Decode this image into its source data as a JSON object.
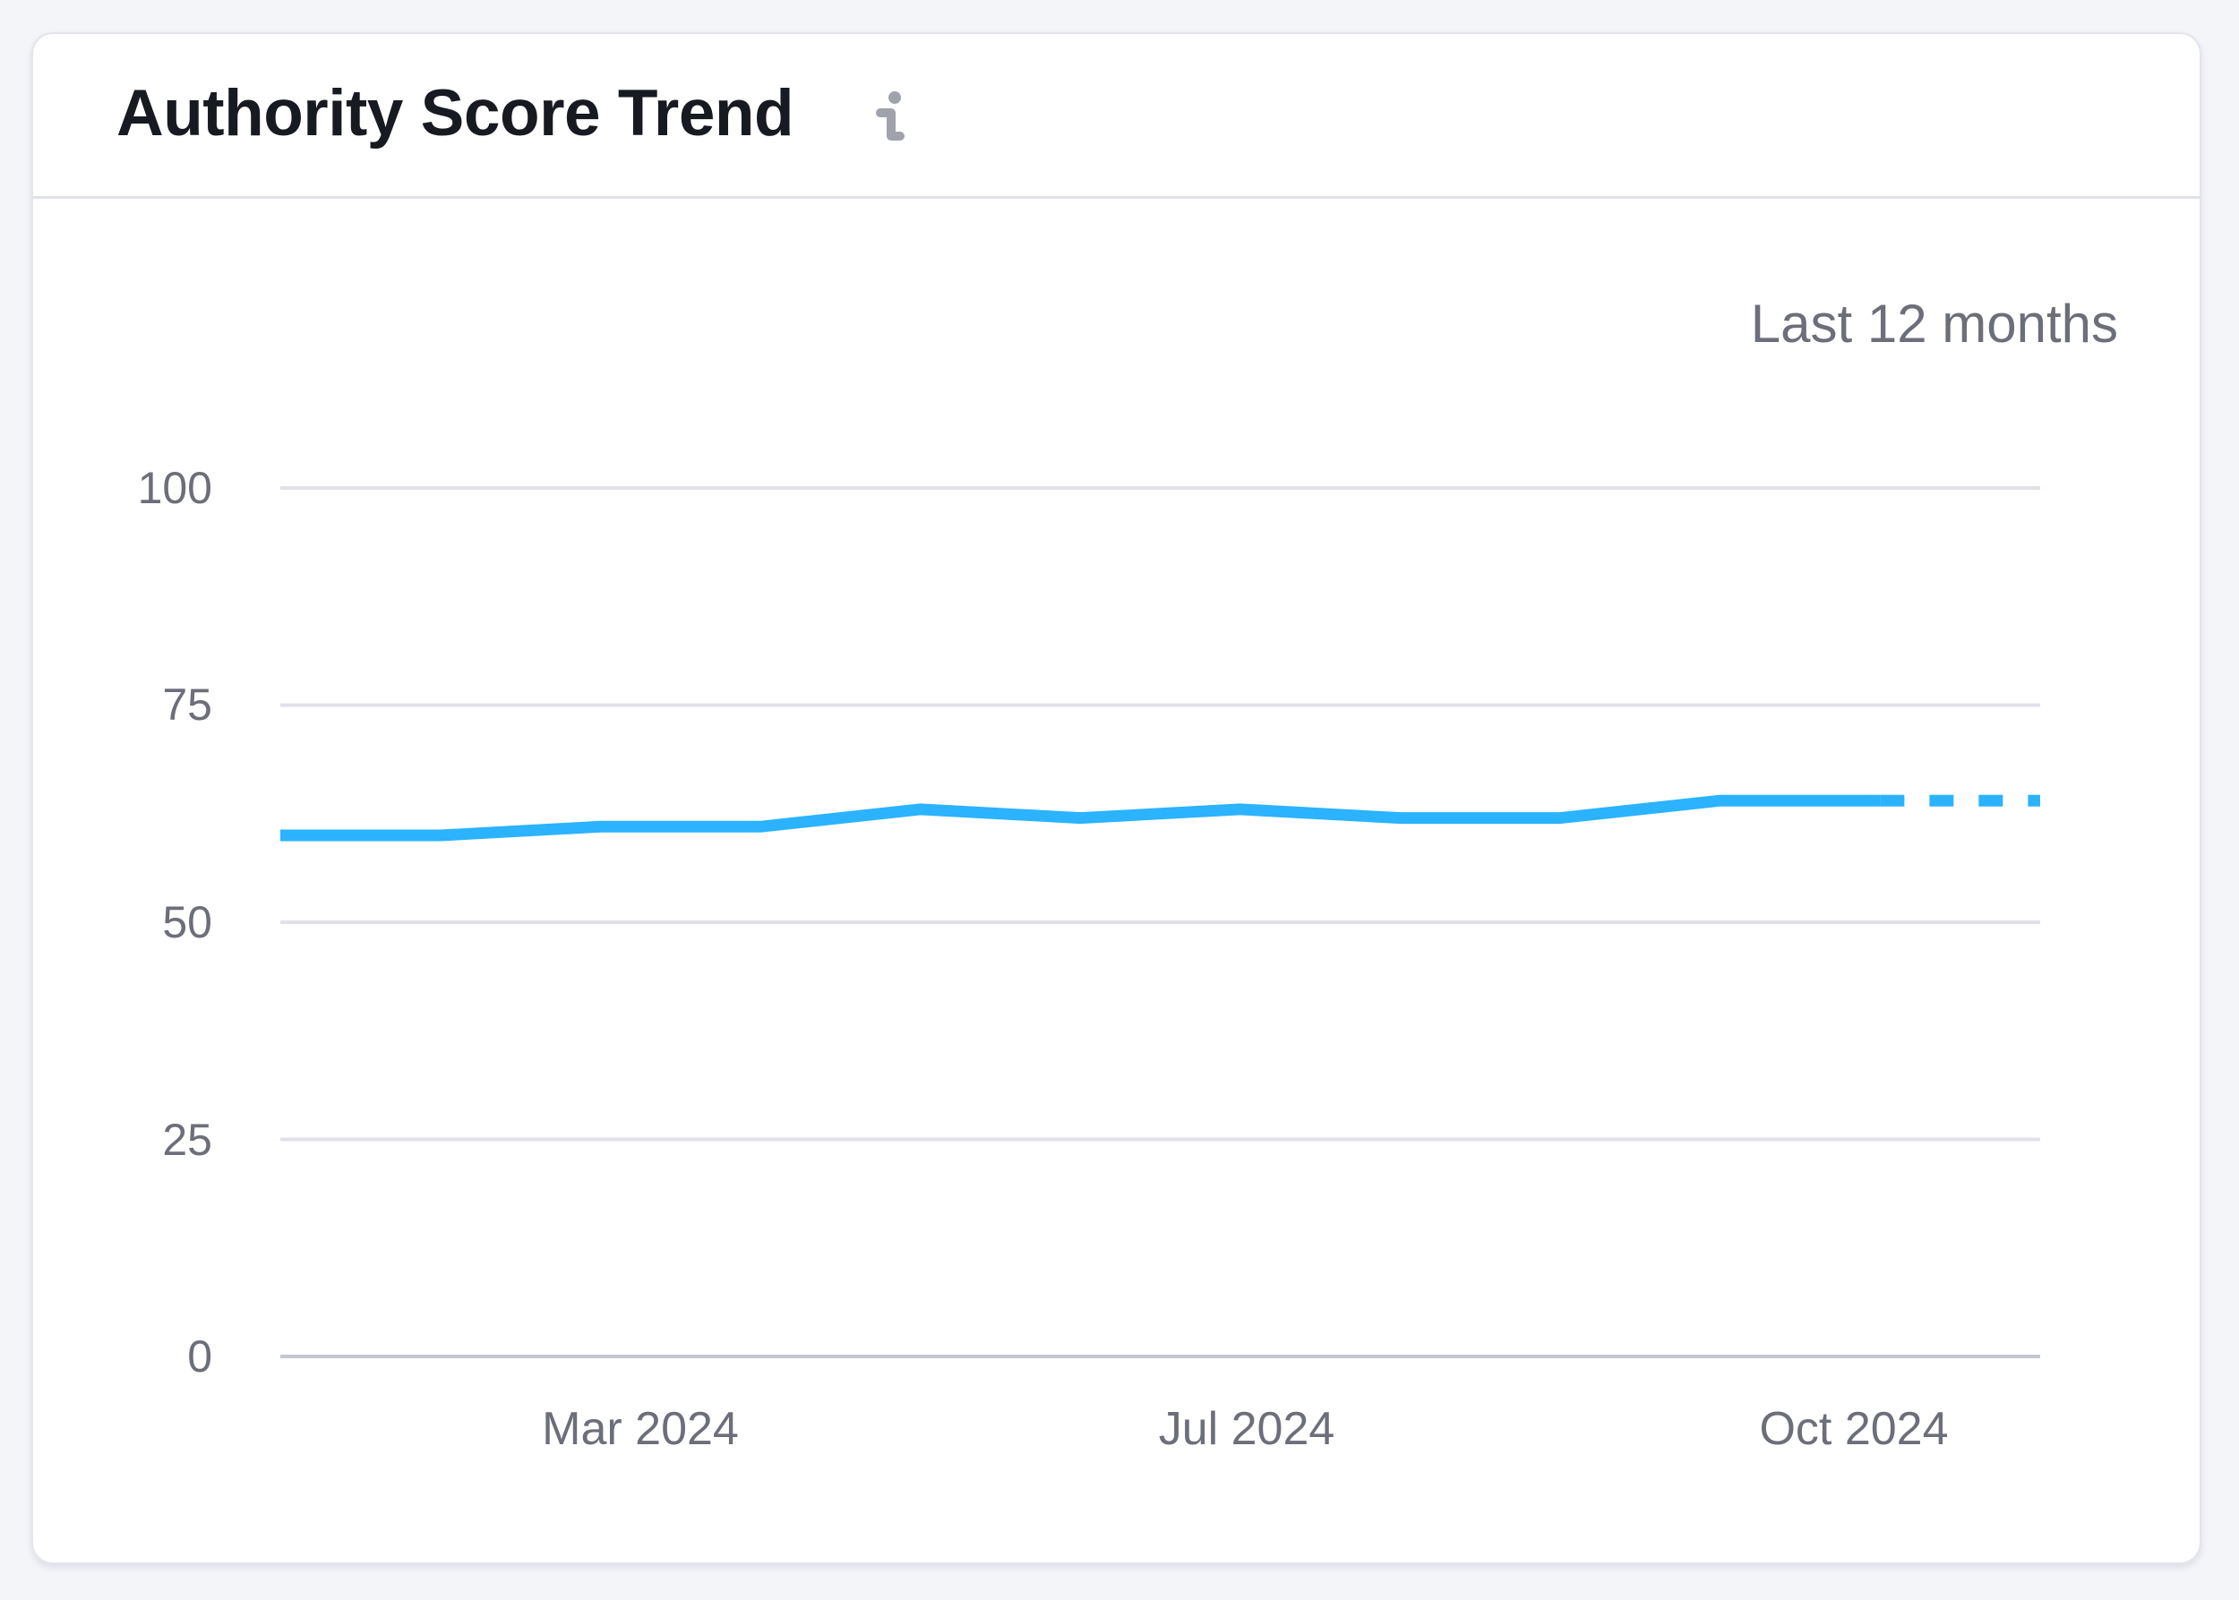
{
  "card": {
    "title": "Authority Score Trend",
    "info_icon": "info-icon",
    "period_label": "Last 12 months"
  },
  "colors": {
    "background": "#F4F5F9",
    "card": "#FFFFFF",
    "line": "#2BB3FF",
    "gridline": "#E0E1E8",
    "baseline": "#C4C7CF",
    "axis_text": "#6C6E79",
    "title_text": "#181A21",
    "info_icon": "#A0A3AB"
  },
  "chart_data": {
    "type": "line",
    "title": "Authority Score Trend",
    "subtitle": "Last 12 months",
    "xlabel": "",
    "ylabel": "",
    "ylim": [
      0,
      100
    ],
    "yticks": [
      0,
      25,
      50,
      75,
      100
    ],
    "xtick_labels": [
      "Mar 2024",
      "Jul 2024",
      "Oct 2024"
    ],
    "grid": true,
    "legend": null,
    "series": [
      {
        "name": "Authority Score",
        "values": [
          60,
          60,
          61,
          61,
          63,
          62,
          63,
          62,
          62,
          64,
          64,
          64
        ],
        "last_segment_style": "dashed"
      }
    ]
  },
  "axis": {
    "y_labels": [
      "100",
      "75",
      "50",
      "25",
      "0"
    ],
    "x_labels": [
      "Mar 2024",
      "Jul 2024",
      "Oct 2024"
    ]
  }
}
